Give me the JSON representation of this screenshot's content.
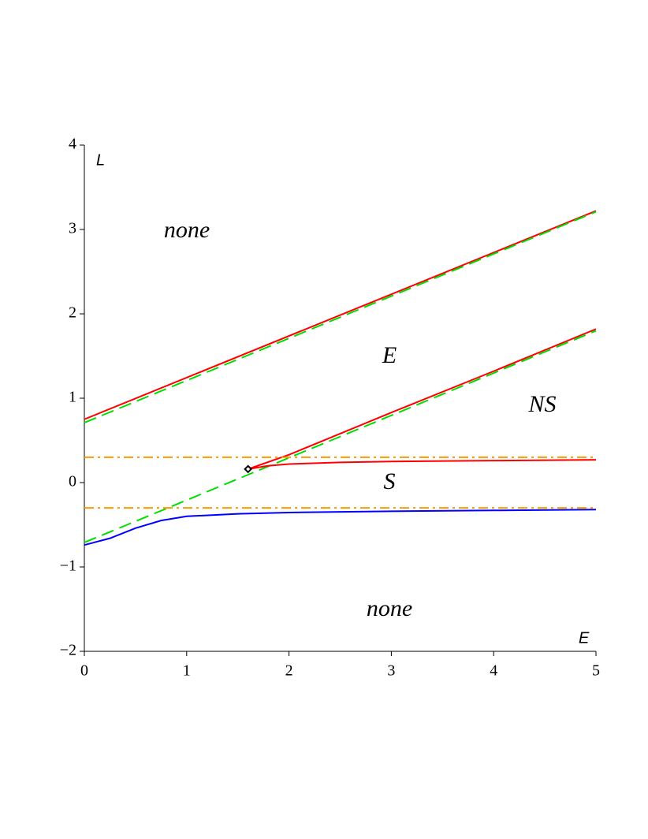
{
  "chart_data": {
    "type": "line",
    "x_label": "E",
    "y_label": "L",
    "xlim": [
      0,
      5
    ],
    "ylim": [
      -2,
      4
    ],
    "xticks": [
      0,
      1,
      2,
      3,
      4,
      5
    ],
    "yticks": [
      {
        "value": -2,
        "label": "−2"
      },
      {
        "value": -1,
        "label": "−1"
      },
      0,
      1,
      2,
      3,
      4
    ],
    "annotations": [
      "none",
      "E",
      "NS",
      "S",
      "none"
    ],
    "series": [
      {
        "color": "#ff0000",
        "style": "solid",
        "x": [
          0,
          5
        ],
        "values": [
          0.75,
          3.22
        ]
      },
      {
        "color": "#00dd00",
        "style": "dash",
        "x": [
          0,
          5
        ],
        "values": [
          0.71,
          3.21
        ]
      },
      {
        "color": "#ff0000",
        "style": "solid",
        "x": [
          1.6,
          2,
          2.5,
          3,
          4,
          5
        ],
        "values": [
          0.16,
          0.33,
          0.58,
          0.83,
          1.32,
          1.82
        ]
      },
      {
        "color": "#00dd00",
        "style": "dash",
        "x": [
          0,
          5
        ],
        "values": [
          -0.71,
          1.8
        ]
      },
      {
        "color": "#ff0000",
        "style": "solid",
        "x": [
          1.6,
          1.8,
          2,
          2.5,
          3,
          4,
          5
        ],
        "values": [
          0.16,
          0.2,
          0.22,
          0.24,
          0.25,
          0.26,
          0.27
        ]
      },
      {
        "color": "#0000ff",
        "style": "solid",
        "x": [
          0,
          0.25,
          0.5,
          0.75,
          1,
          1.5,
          2,
          3,
          4,
          5
        ],
        "values": [
          -0.74,
          -0.66,
          -0.54,
          -0.45,
          -0.4,
          -0.37,
          -0.355,
          -0.34,
          -0.33,
          -0.32
        ]
      },
      {
        "color": "#ff9900",
        "style": "dashdot",
        "x": [
          0,
          5
        ],
        "values": [
          0.3,
          0.3
        ]
      },
      {
        "color": "#ff9900",
        "style": "dashdot",
        "x": [
          0,
          5
        ],
        "values": [
          -0.3,
          -0.3
        ]
      },
      {
        "color": "#000000",
        "style": "point",
        "x": [
          1.6
        ],
        "values": [
          0.16
        ]
      }
    ]
  }
}
